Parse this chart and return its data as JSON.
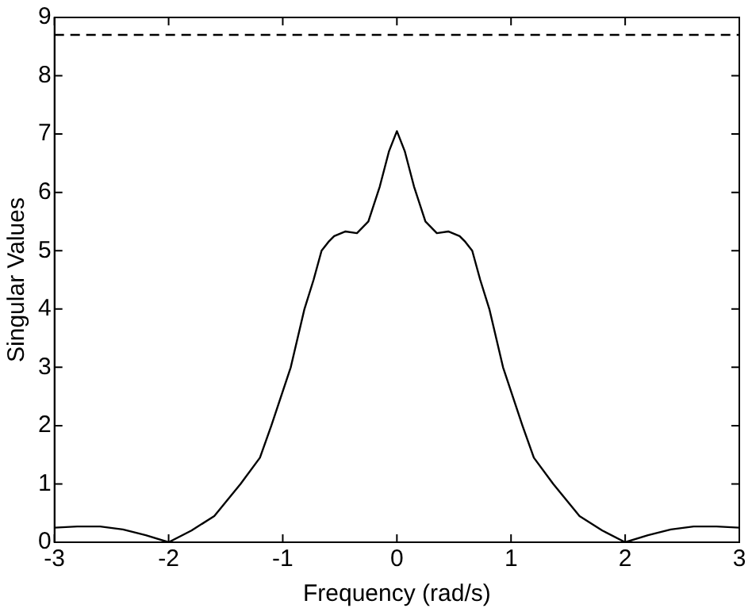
{
  "chart_data": {
    "type": "line",
    "xlabel": "Frequency (rad/s)",
    "ylabel": "Singular Values",
    "x": [
      -3,
      -2.8,
      -2.6,
      -2.4,
      -2.2,
      -2,
      -1.8,
      -1.6,
      -1.37,
      -1.2,
      -1.1,
      -0.93,
      -0.81,
      -0.73,
      -0.66,
      -0.6,
      -0.55,
      -0.45,
      -0.35,
      -0.25,
      -0.15,
      -0.07,
      0,
      0.07,
      0.15,
      0.25,
      0.35,
      0.45,
      0.55,
      0.6,
      0.66,
      0.73,
      0.81,
      0.93,
      1.1,
      1.2,
      1.37,
      1.6,
      1.8,
      2,
      2.2,
      2.4,
      2.6,
      2.8,
      3
    ],
    "series": [
      {
        "color": "#000000",
        "values": [
          0.25,
          0.27,
          0.27,
          0.22,
          0.12,
          0,
          0.2,
          0.45,
          1,
          1.45,
          2,
          3,
          4,
          4.5,
          5,
          5.15,
          5.25,
          5.33,
          5.3,
          5.5,
          6.1,
          6.7,
          7.05,
          6.7,
          6.1,
          5.5,
          5.3,
          5.33,
          5.25,
          5.15,
          5,
          4.5,
          4,
          3,
          2,
          1.45,
          1,
          0.45,
          0.2,
          0,
          0.12,
          0.22,
          0.27,
          0.27,
          0.25
        ]
      }
    ],
    "xlim": [
      -3,
      3
    ],
    "xticks": [
      -3,
      -2,
      -1,
      0,
      1,
      2,
      3
    ],
    "ylim": [
      0,
      9
    ],
    "yticks": [
      0,
      1,
      2,
      3,
      4,
      5,
      6,
      7,
      8,
      9
    ],
    "ref_lines": [
      {
        "axis": "y",
        "value": 8.7,
        "color": "#000000",
        "line_style": "dashed"
      }
    ],
    "grid": false,
    "legend": false,
    "marker": "none",
    "line_style": "solid"
  }
}
